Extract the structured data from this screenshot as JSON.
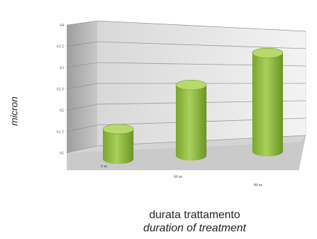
{
  "chart_data": {
    "type": "bar",
    "style": "3d-cylinder",
    "categories": [
      "0 m",
      "60 m",
      "90 m"
    ],
    "values": [
      1.4,
      3.3,
      4.6
    ],
    "ylim": [
      0,
      6
    ],
    "yticks": [
      "61",
      "61.5",
      "62",
      "62.5",
      "63",
      "63.5",
      "64"
    ],
    "xlabel": [
      "durata trattamento",
      "duration of treatment"
    ],
    "ylabel": "micron",
    "grid": true,
    "bar_color": "#9bc34a",
    "bar_top_color": "#b7d86a",
    "bar_dark_color": "#6f9a2a"
  }
}
